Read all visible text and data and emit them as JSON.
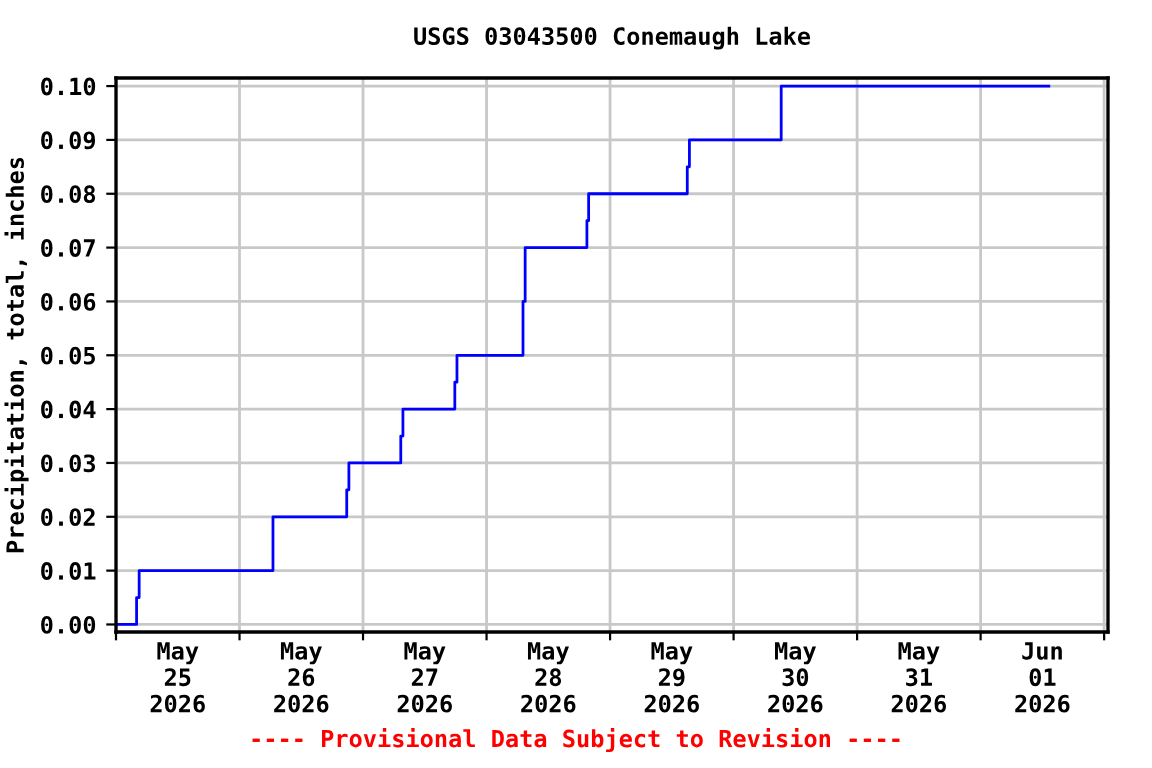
{
  "chart_data": {
    "type": "step",
    "title": "USGS 03043500 Conemaugh Lake",
    "ylabel": "Precipitation, total, inches",
    "x": [
      "2026-05-25T00:00",
      "2026-05-25T04:00",
      "2026-05-25T04:30",
      "2026-05-26T06:30",
      "2026-05-26T20:50",
      "2026-05-26T21:15",
      "2026-05-27T07:20",
      "2026-05-27T07:45",
      "2026-05-27T17:50",
      "2026-05-27T18:15",
      "2026-05-28T07:05",
      "2026-05-28T07:30",
      "2026-05-28T19:30",
      "2026-05-28T19:50",
      "2026-05-29T15:00",
      "2026-05-29T15:25",
      "2026-05-30T09:15",
      "2026-06-01T13:15"
    ],
    "series": [
      {
        "color": "#0000ff",
        "values": [
          0,
          0.005,
          0.01,
          0.02,
          0.025,
          0.03,
          0.035,
          0.04,
          0.045,
          0.05,
          0.06,
          0.07,
          0.075,
          0.08,
          0.085,
          0.09,
          0.1,
          0.1
        ]
      }
    ],
    "xlim": [
      "2026-05-25T00:00",
      "2026-06-02T00:45"
    ],
    "xticks": [
      {
        "value": "2026-05-25T00:00",
        "label": null
      },
      {
        "value": "2026-05-25T12:00",
        "label": "May\n25\n2026"
      },
      {
        "value": "2026-05-26T00:00",
        "label": null
      },
      {
        "value": "2026-05-26T12:00",
        "label": "May\n26\n2026"
      },
      {
        "value": "2026-05-27T00:00",
        "label": null
      },
      {
        "value": "2026-05-27T12:00",
        "label": "May\n27\n2026"
      },
      {
        "value": "2026-05-28T00:00",
        "label": null
      },
      {
        "value": "2026-05-28T12:00",
        "label": "May\n28\n2026"
      },
      {
        "value": "2026-05-29T00:00",
        "label": null
      },
      {
        "value": "2026-05-29T12:00",
        "label": "May\n29\n2026"
      },
      {
        "value": "2026-05-30T00:00",
        "label": null
      },
      {
        "value": "2026-05-30T12:00",
        "label": "May\n30\n2026"
      },
      {
        "value": "2026-05-31T00:00",
        "label": null
      },
      {
        "value": "2026-05-31T12:00",
        "label": "May\n31\n2026"
      },
      {
        "value": "2026-06-01T00:00",
        "label": null
      },
      {
        "value": "2026-06-01T12:00",
        "label": "Jun\n01\n2026"
      },
      {
        "value": "2026-06-02T00:00",
        "label": null
      }
    ],
    "ylim": [
      -0.0014,
      0.1015
    ],
    "yticks": [
      {
        "value": 0,
        "label": "0.00"
      },
      {
        "value": 0.01,
        "label": "0.01"
      },
      {
        "value": 0.02,
        "label": "0.02"
      },
      {
        "value": 0.03,
        "label": "0.03"
      },
      {
        "value": 0.04,
        "label": "0.04"
      },
      {
        "value": 0.05,
        "label": "0.05"
      },
      {
        "value": 0.06,
        "label": "0.06"
      },
      {
        "value": 0.07,
        "label": "0.07"
      },
      {
        "value": 0.08,
        "label": "0.08"
      },
      {
        "value": 0.09,
        "label": "0.09"
      },
      {
        "value": 0.1,
        "label": "0.10"
      }
    ],
    "grid": true,
    "legend": false,
    "line_style": "solid",
    "annotations": [
      "---- Provisional Data Subject to Revision ----"
    ]
  }
}
